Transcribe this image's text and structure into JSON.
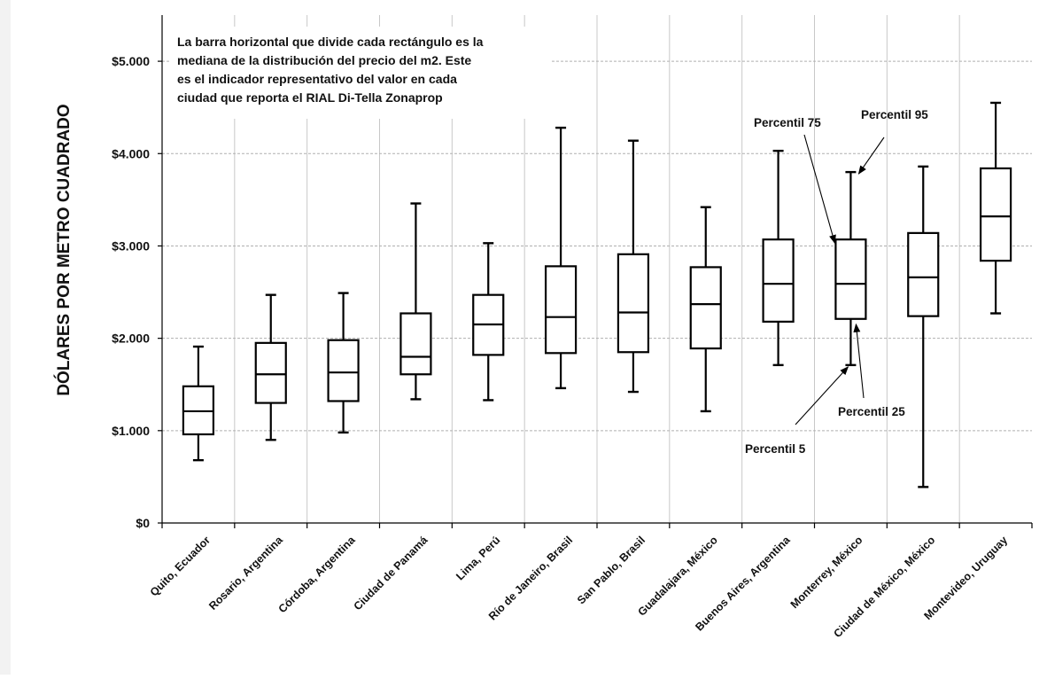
{
  "chart_data": {
    "type": "boxplot",
    "ylabel": "DÓLARES POR METRO CUADRADO",
    "ylim": [
      0,
      5500
    ],
    "yticks": [
      {
        "value": 0,
        "label": "$0"
      },
      {
        "value": 1000,
        "label": "$1.000"
      },
      {
        "value": 2000,
        "label": "$2.000"
      },
      {
        "value": 3000,
        "label": "$3.000"
      },
      {
        "value": 4000,
        "label": "$4.000"
      },
      {
        "value": 5000,
        "label": "$5.000"
      }
    ],
    "grid": true,
    "categories": [
      "Quito, Ecuador",
      "Rosario, Argentina",
      "Córdoba, Argentina",
      "Ciudad de Panamá",
      "Lima, Perú",
      "Río de Janeiro, Brasil",
      "San Pablo, Brasil",
      "Guadalajara, México",
      "Buenos Aires, Argentina",
      "Monterrey, México",
      "Ciudad de México, México",
      "Montevideo, Uruguay"
    ],
    "boxes": [
      {
        "p5": 680,
        "p25": 960,
        "median": 1210,
        "p75": 1480,
        "p95": 1910
      },
      {
        "p5": 900,
        "p25": 1300,
        "median": 1610,
        "p75": 1950,
        "p95": 2470
      },
      {
        "p5": 980,
        "p25": 1320,
        "median": 1630,
        "p75": 1980,
        "p95": 2490
      },
      {
        "p5": 1340,
        "p25": 1610,
        "median": 1800,
        "p75": 2270,
        "p95": 3460
      },
      {
        "p5": 1330,
        "p25": 1820,
        "median": 2150,
        "p75": 2470,
        "p95": 3030
      },
      {
        "p5": 1460,
        "p25": 1840,
        "median": 2230,
        "p75": 2780,
        "p95": 4280
      },
      {
        "p5": 1420,
        "p25": 1850,
        "median": 2280,
        "p75": 2910,
        "p95": 4140
      },
      {
        "p5": 1210,
        "p25": 1890,
        "median": 2370,
        "p75": 2770,
        "p95": 3420
      },
      {
        "p5": 1710,
        "p25": 2180,
        "median": 2590,
        "p75": 3070,
        "p95": 4030
      },
      {
        "p5": 1710,
        "p25": 2210,
        "median": 2590,
        "p75": 3070,
        "p95": 3800
      },
      {
        "p5": 390,
        "p25": 2240,
        "median": 2660,
        "p75": 3140,
        "p95": 3860
      },
      {
        "p5": 2270,
        "p25": 2840,
        "median": 3320,
        "p75": 3840,
        "p95": 4550
      }
    ],
    "note_lines": [
      "La barra horizontal que divide cada rectángulo es la",
      "mediana de la distribución del precio del m2. Este",
      "es el indicador representativo del valor en cada",
      "ciudad que reporta el RIAL Di-Tella Zonaprop"
    ],
    "annotations": [
      {
        "key": "p75",
        "text": "Percentil 75"
      },
      {
        "key": "p95",
        "text": "Percentil 95"
      },
      {
        "key": "p25",
        "text": "Percentil 25"
      },
      {
        "key": "p5",
        "text": "Percentil 5"
      }
    ]
  }
}
